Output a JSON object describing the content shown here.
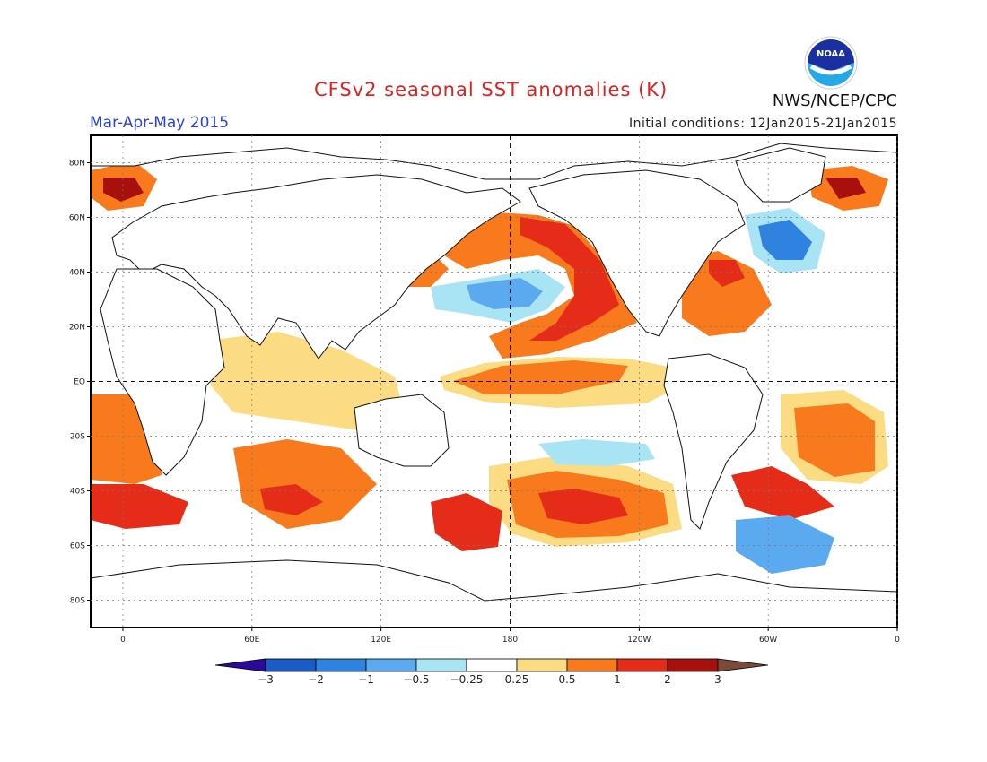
{
  "header": {
    "title": "CFSv2 seasonal SST anomalies (K)",
    "period": "Mar-Apr-May 2015",
    "initial_conditions": "Initial conditions: 12Jan2015-21Jan2015",
    "organization": "NWS/NCEP/CPC",
    "logo_text": "NOAA"
  },
  "map": {
    "lat_labels": [
      "80N",
      "60N",
      "40N",
      "20N",
      "EQ",
      "20S",
      "40S",
      "60S",
      "80S"
    ],
    "lon_labels": [
      "0",
      "60E",
      "120E",
      "180",
      "120W",
      "60W",
      "0"
    ],
    "reference_lines": [
      "EQ",
      "180"
    ]
  },
  "colorbar": {
    "boundaries": [
      "-3",
      "-2",
      "-1",
      "-0.5",
      "-0.25",
      "0.25",
      "0.5",
      "1",
      "2",
      "3"
    ],
    "colors": [
      "#2a0a9a",
      "#1c5ac8",
      "#2f82e0",
      "#5ba9ee",
      "#a8e4f4",
      "#ffffff",
      "#fcdc82",
      "#f87a1c",
      "#e42c18",
      "#a8100e",
      "#7a4a3a"
    ],
    "units": "K"
  },
  "chart_data": {
    "type": "heatmap",
    "title": "CFSv2 seasonal SST anomalies (K)",
    "variable": "sea surface temperature anomaly",
    "units": "K",
    "levels": [
      -3,
      -2,
      -1,
      -0.5,
      -0.25,
      0.25,
      0.5,
      1,
      2,
      3
    ],
    "regions": [
      {
        "name": "Northeast Pacific",
        "anomaly_range": [
          1,
          3
        ]
      },
      {
        "name": "Central/Eastern Equatorial Pacific",
        "anomaly_range": [
          0.5,
          1
        ]
      },
      {
        "name": "Central North Pacific",
        "anomaly_range": [
          -1,
          -0.25
        ]
      },
      {
        "name": "North Atlantic subpolar",
        "anomaly_range": [
          -1,
          -0.25
        ]
      },
      {
        "name": "Northwest Atlantic (Gulf Stream)",
        "anomaly_range": [
          1,
          3
        ]
      },
      {
        "name": "South Pacific midlatitudes",
        "anomaly_range": [
          0.5,
          2
        ]
      },
      {
        "name": "South Atlantic",
        "anomaly_range": [
          0.5,
          1
        ]
      },
      {
        "name": "Indian Ocean",
        "anomaly_range": [
          0.25,
          1
        ]
      },
      {
        "name": "Southern Ocean (south of South America)",
        "anomaly_range": [
          -1,
          -0.25
        ]
      }
    ]
  }
}
